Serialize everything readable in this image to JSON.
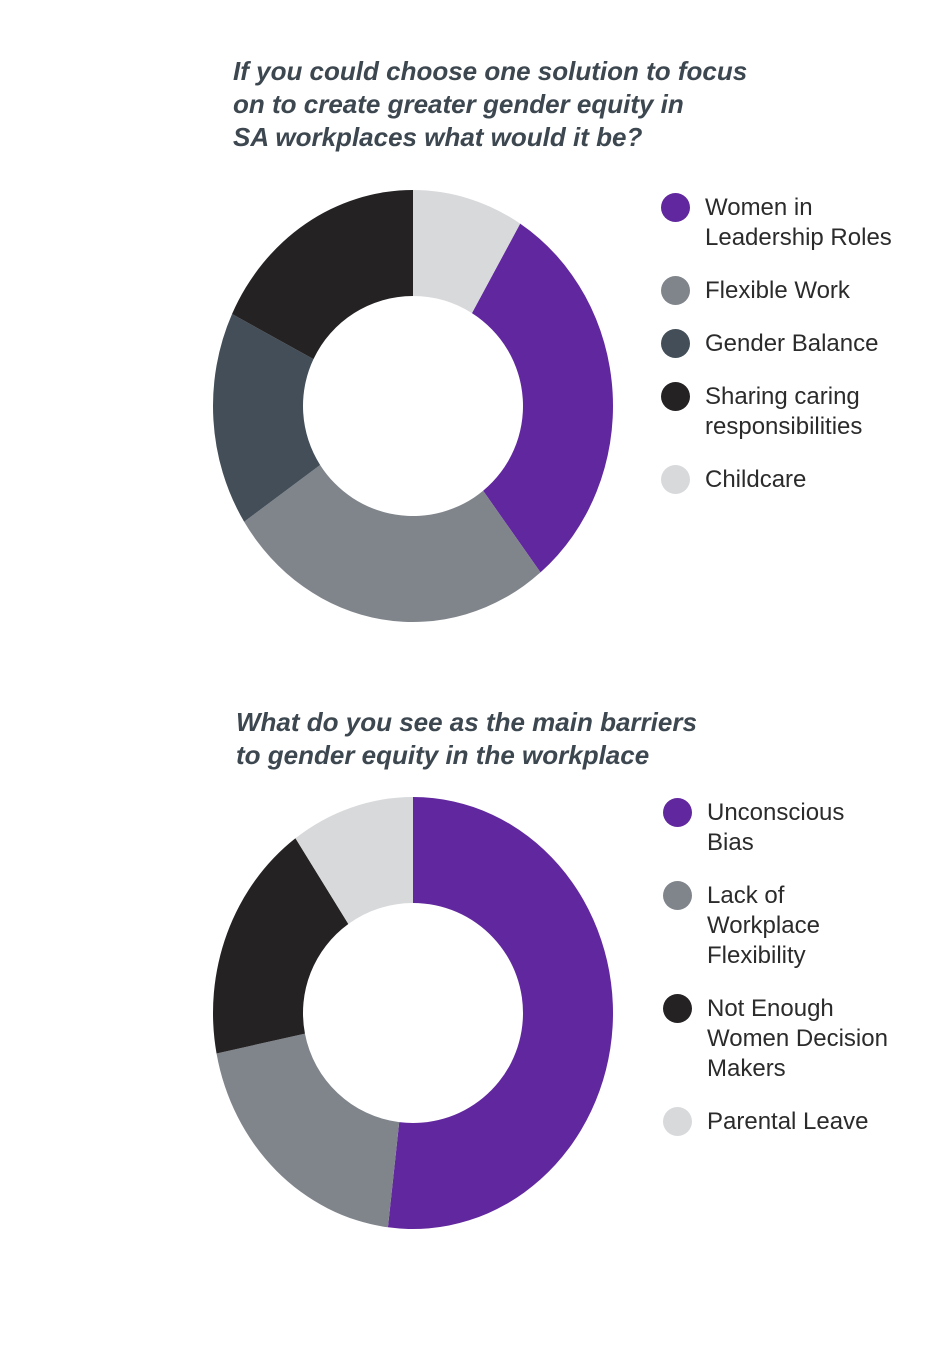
{
  "colors": {
    "purple": "#61279e",
    "gray": "#80858c",
    "slate": "#434e58",
    "black": "#252223",
    "light_gray": "#d8d9db",
    "title": "#3d4750"
  },
  "chart_data": [
    {
      "type": "pie",
      "subtype": "donut",
      "title_lines": [
        "If you could choose one solution to focus",
        "on to create greater gender equity in",
        "SA workplaces what would it be?"
      ],
      "slices": [
        {
          "label_lines": [
            "Women in",
            "Leadership Roles"
          ],
          "value": 30,
          "color": "#61279e"
        },
        {
          "label_lines": [
            "Flexible Work"
          ],
          "value": 27,
          "color": "#80858c"
        },
        {
          "label_lines": [
            "Gender Balance"
          ],
          "value": 16,
          "color": "#434e58"
        },
        {
          "label_lines": [
            "Sharing caring",
            "responsibilities"
          ],
          "value": 18,
          "color": "#252223"
        },
        {
          "label_lines": [
            "Childcare"
          ],
          "value": 9,
          "color": "#d8d9db"
        }
      ],
      "legend_position": "right"
    },
    {
      "type": "pie",
      "subtype": "donut",
      "title_lines": [
        "What do you see as the main barriers",
        "to gender equity in the workplace"
      ],
      "slices": [
        {
          "label_lines": [
            "Unconscious",
            "Bias"
          ],
          "value": 52,
          "color": "#61279e"
        },
        {
          "label_lines": [
            "Lack of",
            "Workplace",
            "Flexibility"
          ],
          "value": 20,
          "color": "#80858c"
        },
        {
          "label_lines": [
            "Not Enough",
            "Women Decision",
            "Makers"
          ],
          "value": 18,
          "color": "#252223"
        },
        {
          "label_lines": [
            "Parental Leave"
          ],
          "value": 10,
          "color": "#d8d9db"
        }
      ],
      "legend_position": "right"
    }
  ]
}
